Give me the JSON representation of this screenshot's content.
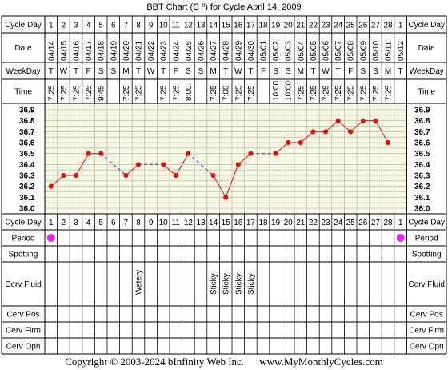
{
  "chart_data": {
    "type": "line",
    "title": "BBT Chart (C º) for Cycle April 14, 2009",
    "row_labels": {
      "cycle_day": "Cycle Day",
      "date": "Date",
      "weekday": "WeekDay",
      "time": "Time",
      "period": "Period",
      "spotting": "Spotting",
      "cerv_fluid": "Cerv Fluid",
      "cerv_pos": "Cerv Pos",
      "cerv_firm": "Cerv Firm",
      "cerv_opn": "Cerv Opn"
    },
    "cycle_days": [
      "1",
      "2",
      "3",
      "4",
      "5",
      "6",
      "7",
      "8",
      "9",
      "10",
      "11",
      "12",
      "13",
      "14",
      "15",
      "16",
      "17",
      "18",
      "19",
      "20",
      "21",
      "22",
      "23",
      "24",
      "25",
      "26",
      "27",
      "28",
      "1"
    ],
    "dates": [
      "04/14",
      "04/15",
      "04/16",
      "04/17",
      "04/18",
      "04/19",
      "04/20",
      "04/21",
      "04/22",
      "04/23",
      "04/24",
      "04/25",
      "04/26",
      "04/27",
      "04/28",
      "04/29",
      "04/30",
      "05/01",
      "05/02",
      "05/03",
      "05/04",
      "05/05",
      "05/06",
      "05/07",
      "05/08",
      "05/09",
      "05/10",
      "05/11",
      "05/12"
    ],
    "weekdays": [
      "T",
      "W",
      "T",
      "F",
      "S",
      "S",
      "M",
      "T",
      "W",
      "T",
      "F",
      "S",
      "S",
      "M",
      "T",
      "W",
      "T",
      "F",
      "S",
      "S",
      "M",
      "T",
      "W",
      "T",
      "F",
      "S",
      "S",
      "M",
      "T"
    ],
    "times": [
      "7:25",
      "7:25",
      "7:25",
      "7:25",
      "9:45",
      "",
      "7:25",
      "7:25",
      "",
      "7:25",
      "7:25",
      "8:00",
      "",
      "7:25",
      "7:00",
      "7:25",
      "7:25",
      "",
      "10:00",
      "10:00",
      "7:25",
      "7:25",
      "7:25",
      "7:25",
      "7:25",
      "7:25",
      "7:25",
      "7:25",
      ""
    ],
    "temperatures": [
      36.2,
      36.3,
      36.3,
      36.5,
      36.5,
      null,
      36.3,
      36.4,
      null,
      36.4,
      36.3,
      36.5,
      null,
      36.3,
      36.1,
      36.4,
      36.5,
      null,
      36.5,
      36.6,
      36.6,
      36.7,
      36.7,
      36.8,
      36.7,
      36.8,
      36.8,
      36.6,
      null
    ],
    "y_ticks": [
      "36.9",
      "36.8",
      "36.7",
      "36.6",
      "36.5",
      "36.4",
      "36.3",
      "36.2",
      "36.1",
      "36.0"
    ],
    "ylim": [
      36.0,
      36.9
    ],
    "period": [
      1,
      0,
      0,
      0,
      0,
      0,
      0,
      0,
      0,
      0,
      0,
      0,
      0,
      0,
      0,
      0,
      0,
      0,
      0,
      0,
      0,
      0,
      0,
      0,
      0,
      0,
      0,
      0,
      1
    ],
    "cerv_fluid": [
      "",
      "",
      "",
      "",
      "",
      "",
      "",
      "Watery",
      "",
      "",
      "",
      "",
      "",
      "Sticky",
      "Sticky",
      "Sticky",
      "Sticky",
      "",
      "",
      "",
      "",
      "",
      "",
      "",
      "",
      "",
      "",
      "",
      ""
    ],
    "colors": {
      "line": "#dd3333",
      "dashed_line": "#4444ee",
      "marker": "#ff0000",
      "period_dot": "#ee22ee",
      "plot_bg": "#f6f6e4",
      "grid": "#c4c4a8",
      "border": "#000000"
    }
  },
  "footer": {
    "copyright": "Copyright © 2003-2024 bInfinity Web Inc.",
    "site": "www.MyMonthlyCycles.com"
  }
}
